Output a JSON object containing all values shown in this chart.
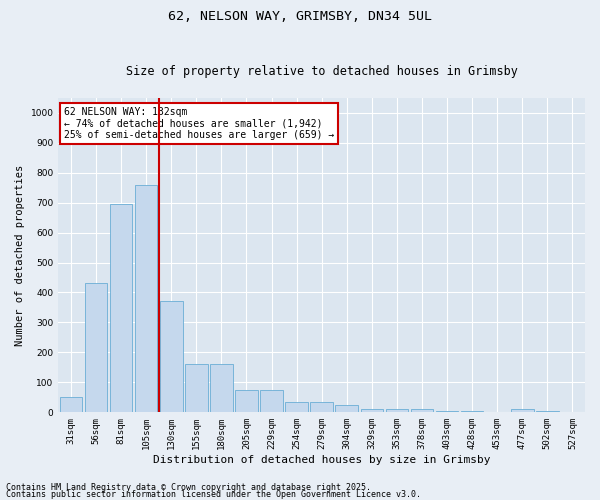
{
  "title": "62, NELSON WAY, GRIMSBY, DN34 5UL",
  "subtitle": "Size of property relative to detached houses in Grimsby",
  "xlabel": "Distribution of detached houses by size in Grimsby",
  "ylabel": "Number of detached properties",
  "categories": [
    "31sqm",
    "56sqm",
    "81sqm",
    "105sqm",
    "130sqm",
    "155sqm",
    "180sqm",
    "205sqm",
    "229sqm",
    "254sqm",
    "279sqm",
    "304sqm",
    "329sqm",
    "353sqm",
    "378sqm",
    "403sqm",
    "428sqm",
    "453sqm",
    "477sqm",
    "502sqm",
    "527sqm"
  ],
  "values": [
    50,
    430,
    695,
    760,
    370,
    160,
    160,
    75,
    75,
    35,
    35,
    25,
    10,
    10,
    10,
    5,
    5,
    0,
    10,
    5,
    0
  ],
  "bar_color": "#c5d8ed",
  "bar_edge_color": "#6aadd5",
  "red_line_color": "#cc0000",
  "ylim": [
    0,
    1050
  ],
  "yticks": [
    0,
    100,
    200,
    300,
    400,
    500,
    600,
    700,
    800,
    900,
    1000
  ],
  "annotation_text": "62 NELSON WAY: 132sqm\n← 74% of detached houses are smaller (1,942)\n25% of semi-detached houses are larger (659) →",
  "annotation_box_color": "#ffffff",
  "annotation_box_edge_color": "#cc0000",
  "footer_line1": "Contains HM Land Registry data © Crown copyright and database right 2025.",
  "footer_line2": "Contains public sector information licensed under the Open Government Licence v3.0.",
  "bg_color": "#e8eef5",
  "plot_bg_color": "#dce6f0",
  "grid_color": "#ffffff",
  "title_fontsize": 9.5,
  "subtitle_fontsize": 8.5,
  "xlabel_fontsize": 8,
  "ylabel_fontsize": 7.5,
  "tick_fontsize": 6.5,
  "annotation_fontsize": 7,
  "footer_fontsize": 6
}
